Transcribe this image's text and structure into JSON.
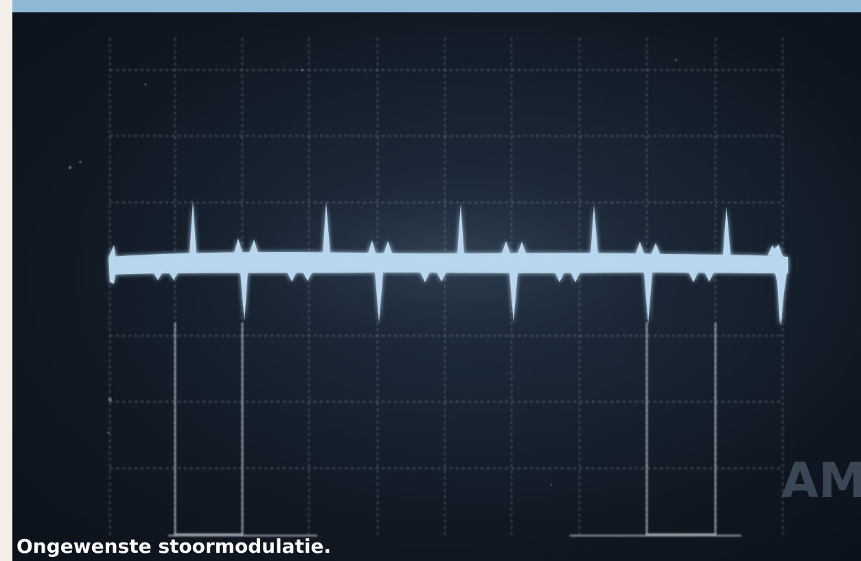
{
  "caption": "Ongewenste stoormodulatie.",
  "logo_text": "AM",
  "colors": {
    "screen_dark": "#131b25",
    "grid": "#c8d2dc",
    "trace": "#b8d7ee",
    "top_band": "#8fb8d5",
    "paper": "#f2efe8",
    "caption": "#ffffff"
  },
  "icons": {
    "trace_shape": "oscilloscope-waveform-icon",
    "grid_shape": "oscilloscope-graticule-icon"
  }
}
